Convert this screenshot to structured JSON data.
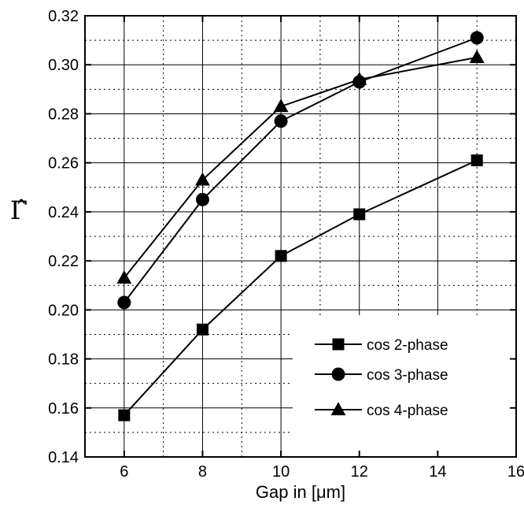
{
  "chart_data": {
    "type": "line",
    "xlabel": "Gap in [μm]",
    "ylabel": "Γ̂",
    "xlim": [
      5,
      16
    ],
    "ylim": [
      0.14,
      0.32
    ],
    "x_ticks": [
      6,
      8,
      10,
      12,
      14,
      16
    ],
    "x_tick_labels": [
      "6",
      "8",
      "10",
      "12",
      "14",
      "16"
    ],
    "y_ticks": [
      0.14,
      0.16,
      0.18,
      0.2,
      0.22,
      0.24,
      0.26,
      0.28,
      0.3,
      0.32
    ],
    "y_tick_labels": [
      "0.14",
      "0.16",
      "0.18",
      "0.20",
      "0.22",
      "0.24",
      "0.26",
      "0.28",
      "0.30",
      "0.32"
    ],
    "grid": true,
    "legend_position": "bottom-right",
    "x": [
      6,
      8,
      10,
      12,
      15
    ],
    "series": [
      {
        "name": "cos 2-phase",
        "marker": "square",
        "values": [
          0.157,
          0.192,
          0.222,
          0.239,
          0.261
        ]
      },
      {
        "name": "cos 3-phase",
        "marker": "circle",
        "values": [
          0.203,
          0.245,
          0.277,
          0.293,
          0.311
        ]
      },
      {
        "name": "cos 4-phase",
        "marker": "triangle",
        "values": [
          0.213,
          0.253,
          0.283,
          0.294,
          0.303
        ]
      }
    ],
    "colors": {
      "line": "#000000",
      "grid": "#000000",
      "background": "#ffffff"
    }
  }
}
